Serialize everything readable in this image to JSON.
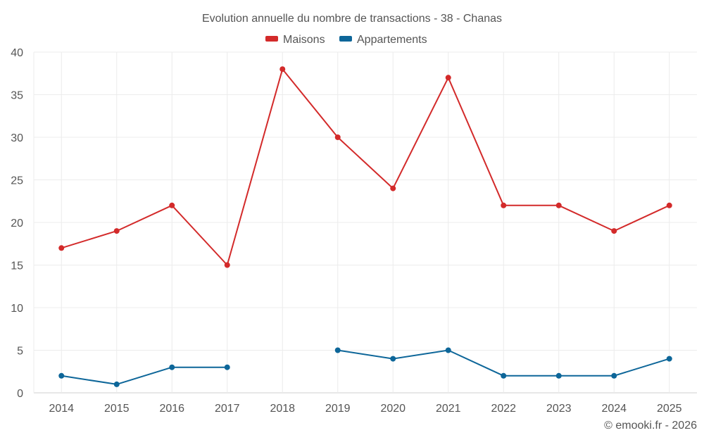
{
  "chart_data": {
    "type": "line",
    "title": "Evolution annuelle du nombre de transactions - 38 - Chanas",
    "categories": [
      "2014",
      "2015",
      "2016",
      "2017",
      "2018",
      "2019",
      "2020",
      "2021",
      "2022",
      "2023",
      "2024",
      "2025"
    ],
    "ylim": [
      0,
      40
    ],
    "yticks": [
      0,
      5,
      10,
      15,
      20,
      25,
      30,
      35,
      40
    ],
    "legend_position": "top-center",
    "grid": true,
    "series": [
      {
        "name": "Maisons",
        "color": "#d32a2a",
        "values": [
          17,
          19,
          22,
          15,
          38,
          30,
          24,
          37,
          22,
          22,
          19,
          22
        ]
      },
      {
        "name": "Appartements",
        "color": "#0d6699",
        "values": [
          2,
          1,
          3,
          3,
          null,
          5,
          4,
          5,
          2,
          2,
          2,
          4
        ]
      }
    ]
  },
  "credit": "© emooki.fr - 2026"
}
